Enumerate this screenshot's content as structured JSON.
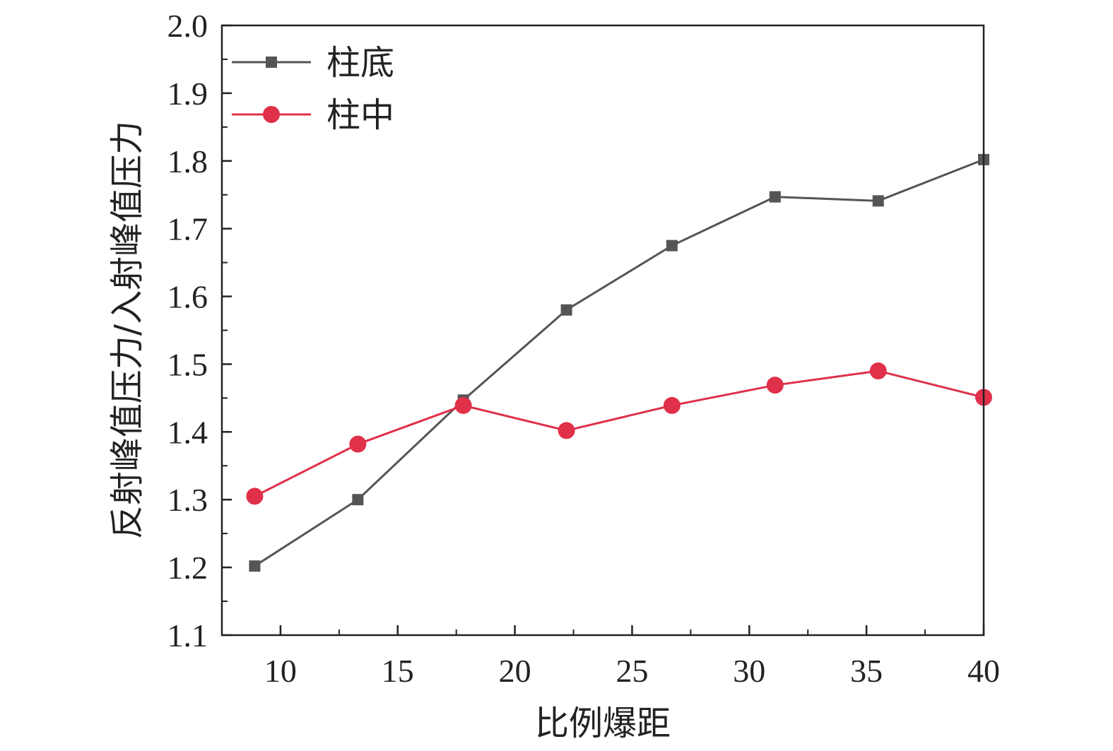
{
  "chart_data": {
    "type": "line",
    "xlabel": "比例爆距",
    "ylabel": "反射峰值压力/入射峰值压力",
    "xlim": [
      7.5,
      40
    ],
    "ylim": [
      1.1,
      2.0
    ],
    "x_ticks": [
      "10",
      "15",
      "20",
      "25",
      "30",
      "35",
      "40"
    ],
    "y_ticks": [
      "1.1",
      "1.2",
      "1.3",
      "1.4",
      "1.5",
      "1.6",
      "1.7",
      "1.8",
      "1.9",
      "2.0"
    ],
    "x": [
      8.9,
      13.3,
      17.8,
      22.2,
      26.7,
      31.1,
      35.5,
      40.0
    ],
    "series": [
      {
        "name": "柱底",
        "color": "#555555",
        "marker": "square",
        "values": [
          1.202,
          1.3,
          1.447,
          1.58,
          1.675,
          1.747,
          1.741,
          1.802
        ]
      },
      {
        "name": "柱中",
        "color": "#e0304a",
        "marker": "circle",
        "values": [
          1.305,
          1.382,
          1.439,
          1.402,
          1.439,
          1.469,
          1.49,
          1.451
        ]
      }
    ],
    "grid": false,
    "legend_position": "top-left"
  }
}
